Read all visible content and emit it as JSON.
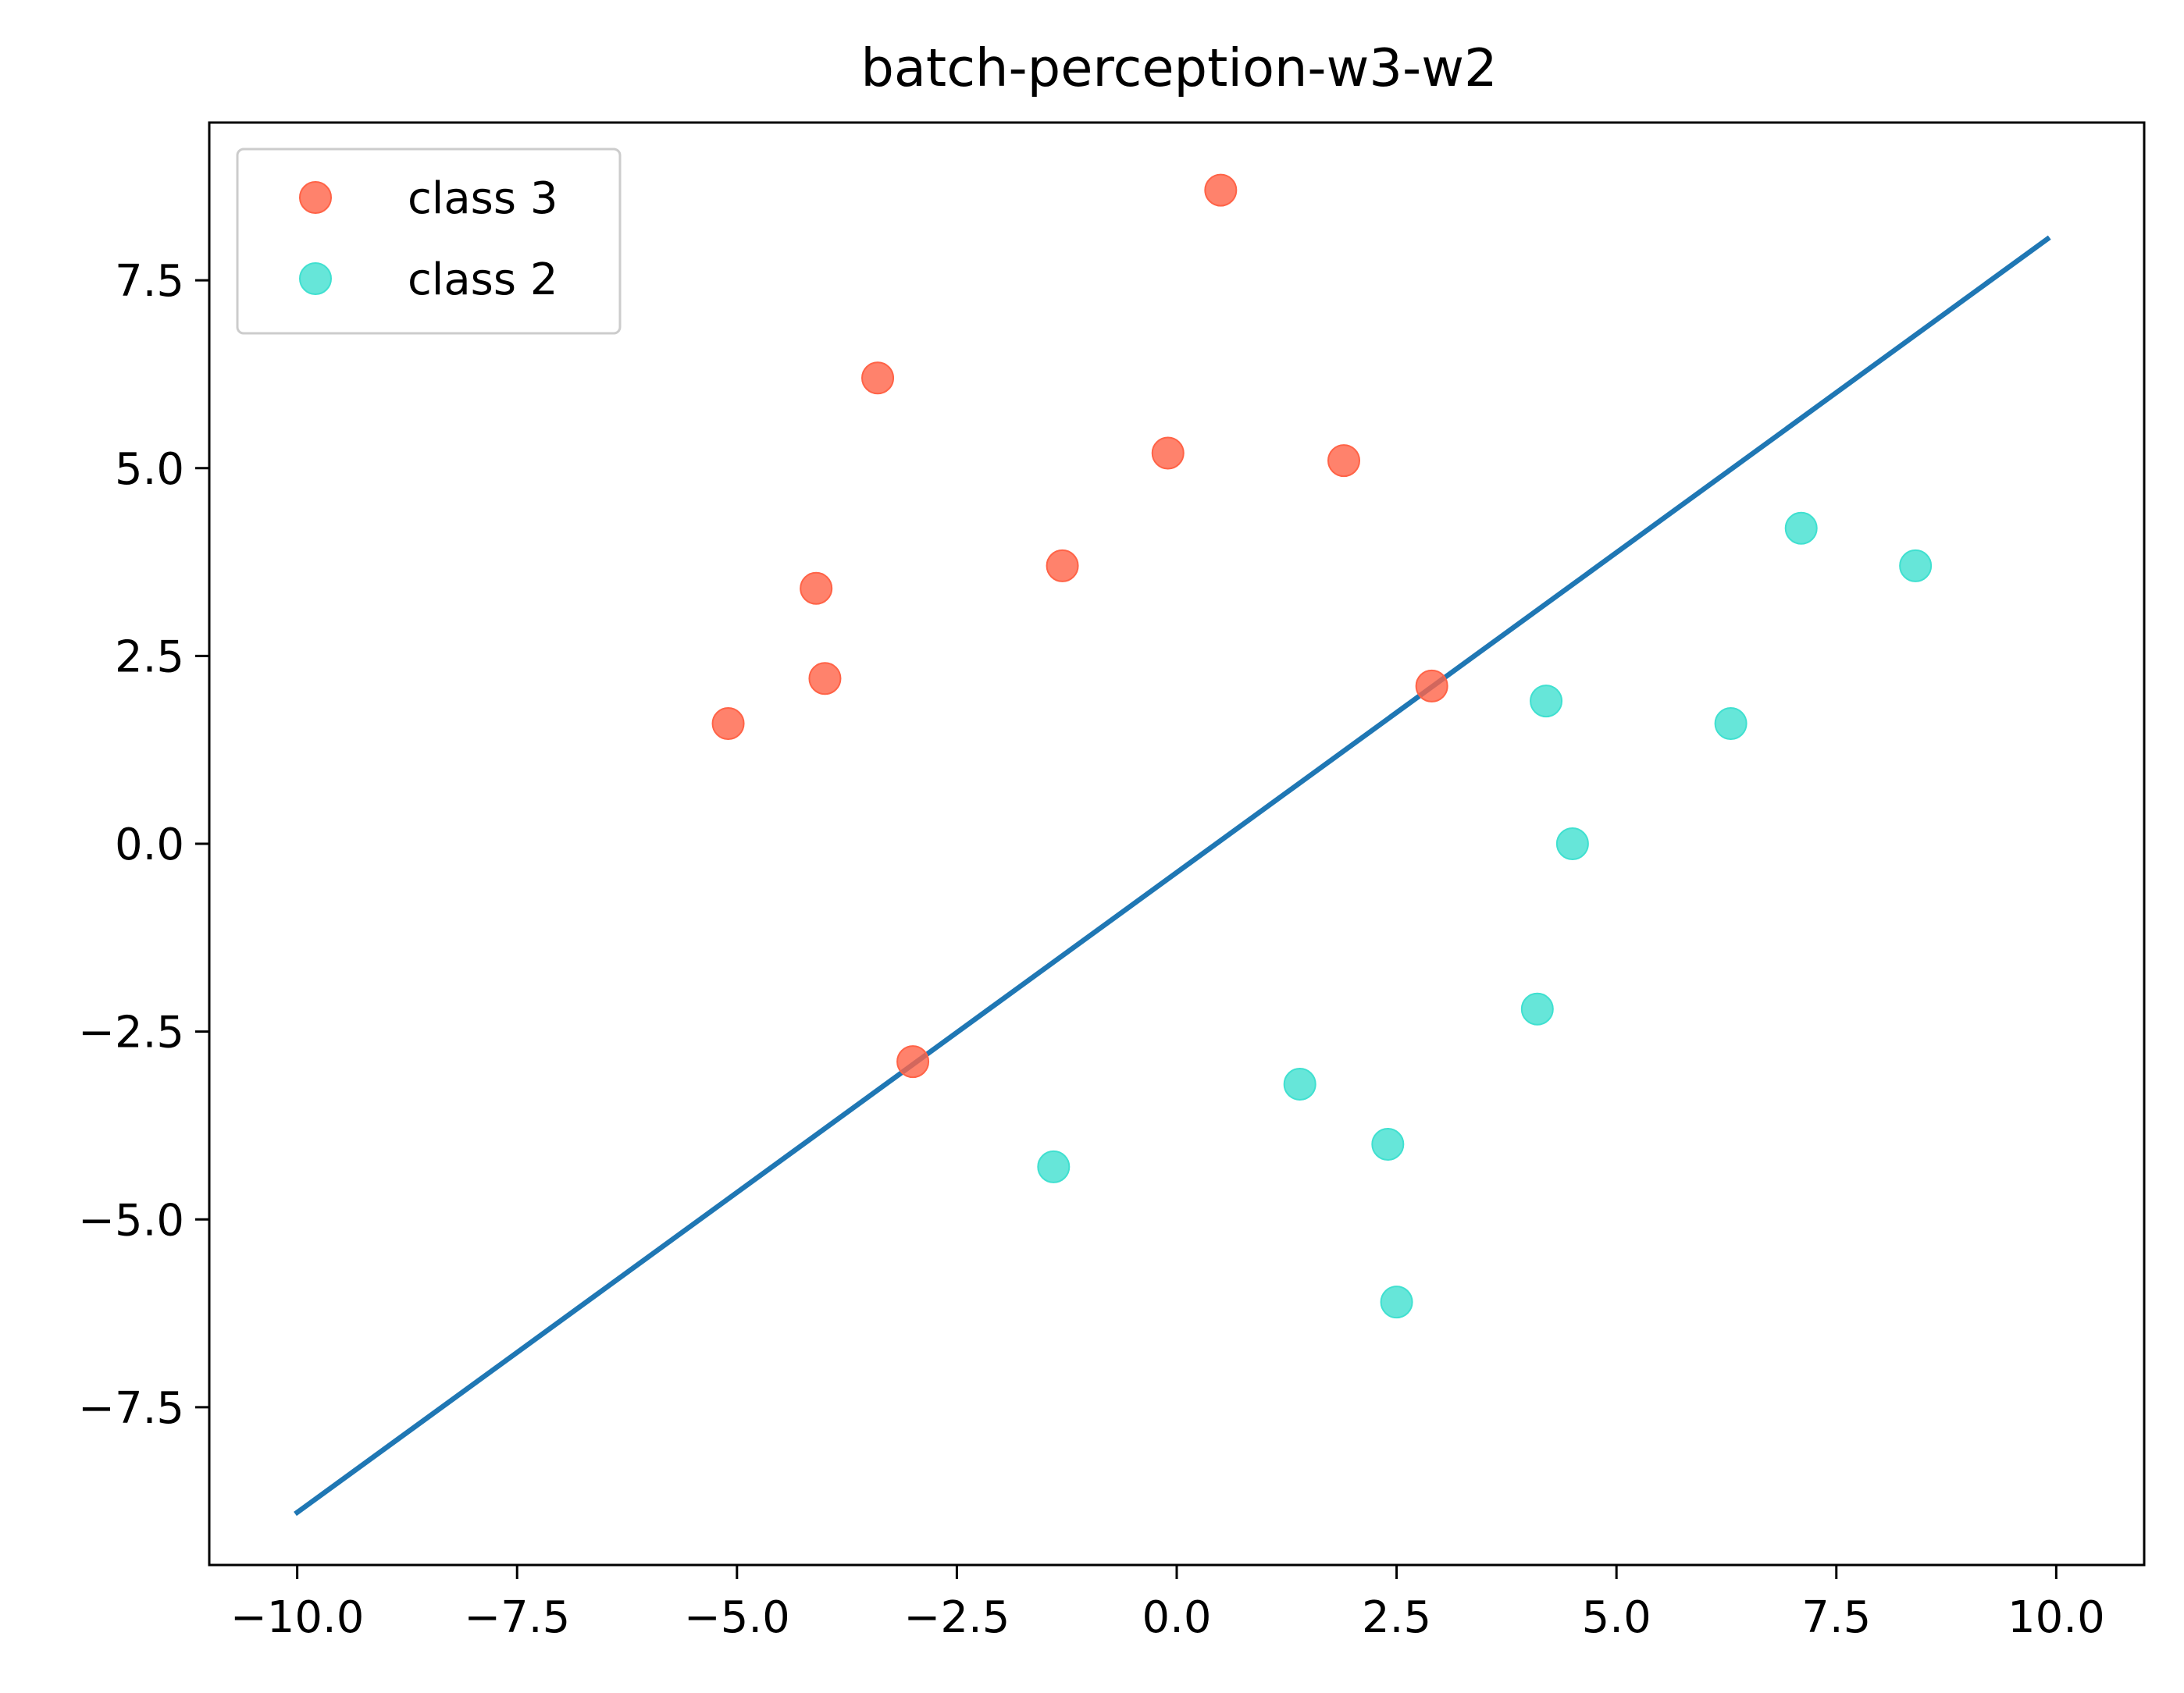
{
  "chart_data": {
    "type": "scatter",
    "title": "batch-perception-w3-w2",
    "xlabel": "",
    "ylabel": "",
    "xlim": [
      -11,
      11
    ],
    "ylim": [
      -9.6,
      9.6
    ],
    "grid": false,
    "legend_position": "top-left",
    "x_ticks": [
      -10.0,
      -7.5,
      -5.0,
      -2.5,
      0.0,
      2.5,
      5.0,
      7.5,
      10.0
    ],
    "x_tick_labels": [
      "−10.0",
      "−7.5",
      "−5.0",
      "−2.5",
      "0.0",
      "2.5",
      "5.0",
      "7.5",
      "10.0"
    ],
    "y_ticks": [
      -7.5,
      -5.0,
      -2.5,
      0.0,
      2.5,
      5.0,
      7.5
    ],
    "y_tick_labels": [
      "−7.5",
      "−5.0",
      "−2.5",
      "0.0",
      "2.5",
      "5.0",
      "7.5"
    ],
    "series": [
      {
        "name": "class 3",
        "kind": "scatter",
        "color": "#ff6347",
        "points": [
          [
            0.5,
            8.7
          ],
          [
            -3.4,
            6.2
          ],
          [
            -0.1,
            5.2
          ],
          [
            1.9,
            5.1
          ],
          [
            -4.1,
            3.4
          ],
          [
            -1.3,
            3.7
          ],
          [
            -4.0,
            2.2
          ],
          [
            -5.1,
            1.6
          ],
          [
            2.9,
            2.1
          ],
          [
            -3.0,
            -2.9
          ]
        ]
      },
      {
        "name": "class 2",
        "kind": "scatter",
        "color": "#40e0d0",
        "points": [
          [
            7.1,
            4.2
          ],
          [
            8.4,
            3.7
          ],
          [
            4.2,
            1.9
          ],
          [
            6.3,
            1.6
          ],
          [
            4.5,
            0.0
          ],
          [
            4.1,
            -2.2
          ],
          [
            1.4,
            -3.2
          ],
          [
            2.4,
            -4.0
          ],
          [
            -1.4,
            -4.3
          ],
          [
            2.5,
            -6.1
          ]
        ]
      },
      {
        "kind": "line",
        "color": "#1f77b4",
        "points": [
          [
            -10.0,
            -8.9
          ],
          [
            9.9,
            8.05
          ]
        ]
      }
    ]
  }
}
